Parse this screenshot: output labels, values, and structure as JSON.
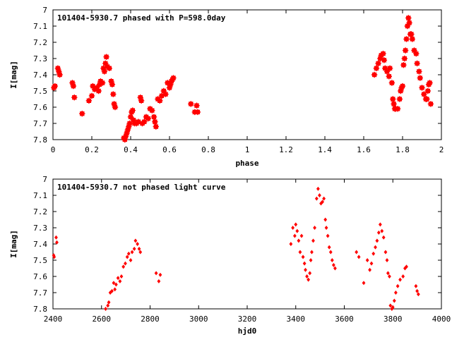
{
  "chart_data": [
    {
      "type": "scatter",
      "title": "101404-5930.7 phased with P=598.0day",
      "xlabel": "phase",
      "ylabel": "I[mag]",
      "xlim": [
        0,
        2
      ],
      "ylim": [
        7,
        7.8
      ],
      "y_inverted": true,
      "grid": false,
      "x_ticks": [
        0,
        0.2,
        0.4,
        0.6,
        0.8,
        1,
        1.2,
        1.4,
        1.6,
        1.8,
        2
      ],
      "x_tick_labels": [
        "0",
        "0.2",
        "0.4",
        "0.6",
        "0.8",
        "1",
        "1.2",
        "1.4",
        "1.6",
        "1.8",
        "2"
      ],
      "y_ticks": [
        7,
        7.1,
        7.2,
        7.3,
        7.4,
        7.5,
        7.6,
        7.7,
        7.8
      ],
      "y_tick_labels": [
        "7",
        "7.1",
        "7.2",
        "7.3",
        "7.4",
        "7.5",
        "7.6",
        "7.7",
        "7.8"
      ],
      "marker": "star",
      "color": "#ff0000",
      "series": [
        {
          "x": [
            0.005,
            0.01,
            0.025,
            0.03,
            0.035,
            0.1,
            0.105,
            0.11,
            0.15,
            0.185,
            0.2,
            0.205,
            0.215,
            0.225,
            0.235,
            0.24,
            0.245,
            0.255,
            0.26,
            0.265,
            0.27,
            0.275,
            0.28,
            0.29,
            0.3,
            0.305,
            0.31,
            0.315,
            0.32,
            0.365,
            0.37,
            0.375,
            0.38,
            0.385,
            0.39,
            0.395,
            0.4,
            0.405,
            0.41,
            0.415,
            0.42,
            0.43,
            0.44,
            0.45,
            0.455,
            0.46,
            0.47,
            0.48,
            0.49,
            0.5,
            0.51,
            0.52,
            0.525,
            0.53,
            0.54,
            0.55,
            0.56,
            0.57,
            0.58,
            0.59,
            0.6,
            0.605,
            0.61,
            0.615,
            0.62,
            0.71,
            0.73,
            0.74,
            0.745,
            1.655,
            1.665,
            1.675,
            1.685,
            1.69,
            1.7,
            1.705,
            1.71,
            1.72,
            1.73,
            1.735,
            1.745,
            1.75,
            1.755,
            1.76,
            1.765,
            1.775,
            1.785,
            1.79,
            1.795,
            1.8,
            1.805,
            1.81,
            1.815,
            1.82,
            1.825,
            1.83,
            1.835,
            1.84,
            1.845,
            1.85,
            1.86,
            1.87,
            1.875,
            1.885,
            1.89,
            1.9,
            1.91,
            1.92,
            1.925,
            1.93,
            1.935,
            1.94,
            1.945
          ],
          "y": [
            7.48,
            7.47,
            7.36,
            7.38,
            7.4,
            7.45,
            7.47,
            7.54,
            7.64,
            7.56,
            7.53,
            7.47,
            7.49,
            7.48,
            7.5,
            7.46,
            7.44,
            7.45,
            7.36,
            7.38,
            7.33,
            7.29,
            7.35,
            7.36,
            7.44,
            7.46,
            7.52,
            7.58,
            7.6,
            7.79,
            7.8,
            7.78,
            7.76,
            7.74,
            7.72,
            7.7,
            7.66,
            7.63,
            7.62,
            7.68,
            7.7,
            7.7,
            7.69,
            7.54,
            7.56,
            7.7,
            7.69,
            7.66,
            7.67,
            7.61,
            7.62,
            7.66,
            7.69,
            7.72,
            7.55,
            7.56,
            7.53,
            7.5,
            7.52,
            7.45,
            7.48,
            7.46,
            7.44,
            7.43,
            7.42,
            7.58,
            7.63,
            7.59,
            7.63,
            7.4,
            7.36,
            7.33,
            7.3,
            7.28,
            7.27,
            7.31,
            7.36,
            7.38,
            7.41,
            7.36,
            7.45,
            7.55,
            7.58,
            7.61,
            7.61,
            7.61,
            7.55,
            7.5,
            7.48,
            7.47,
            7.34,
            7.3,
            7.25,
            7.18,
            7.1,
            7.05,
            7.08,
            7.15,
            7.15,
            7.18,
            7.25,
            7.27,
            7.33,
            7.38,
            7.42,
            7.48,
            7.52,
            7.55,
            7.55,
            7.5,
            7.46,
            7.45,
            7.58
          ]
        }
      ]
    },
    {
      "type": "scatter",
      "title": "101404-5930.7 not phased light curve",
      "xlabel": "hjd0",
      "ylabel": "I[mag]",
      "xlim": [
        2400,
        4000
      ],
      "ylim": [
        7,
        7.8
      ],
      "y_inverted": true,
      "grid": false,
      "x_ticks": [
        2400,
        2600,
        2800,
        3000,
        3200,
        3400,
        3600,
        3800,
        4000
      ],
      "x_tick_labels": [
        "2400",
        "2600",
        "2800",
        "3000",
        "3200",
        "3400",
        "3600",
        "3800",
        "4000"
      ],
      "y_ticks": [
        7,
        7.1,
        7.2,
        7.3,
        7.4,
        7.5,
        7.6,
        7.7,
        7.8
      ],
      "y_tick_labels": [
        "7",
        "7.1",
        "7.2",
        "7.3",
        "7.4",
        "7.5",
        "7.6",
        "7.7",
        "7.8"
      ],
      "marker": "diamond",
      "color": "#ff0000",
      "series": [
        {
          "x": [
            2403,
            2405,
            2413,
            2416,
            2617,
            2626,
            2630,
            2636,
            2643,
            2650,
            2655,
            2660,
            2668,
            2676,
            2682,
            2690,
            2698,
            2706,
            2712,
            2720,
            2726,
            2735,
            2740,
            2748,
            2755,
            2760,
            2825,
            2836,
            2842,
            3380,
            3388,
            3396,
            3400,
            3406,
            3412,
            3418,
            3424,
            3430,
            3436,
            3440,
            3446,
            3452,
            3458,
            3462,
            3466,
            3472,
            3478,
            3486,
            3492,
            3498,
            3504,
            3510,
            3516,
            3522,
            3526,
            3532,
            3538,
            3544,
            3550,
            3556,
            3562,
            3650,
            3660,
            3680,
            3695,
            3705,
            3712,
            3720,
            3728,
            3735,
            3742,
            3748,
            3755,
            3762,
            3770,
            3776,
            3780,
            3786,
            3790,
            3796,
            3800,
            3806,
            3812,
            3820,
            3830,
            3842,
            3850,
            3856,
            3895,
            3900,
            3905
          ],
          "y": [
            7.47,
            7.48,
            7.36,
            7.39,
            7.8,
            7.78,
            7.76,
            7.7,
            7.69,
            7.64,
            7.68,
            7.65,
            7.61,
            7.63,
            7.6,
            7.54,
            7.52,
            7.48,
            7.46,
            7.5,
            7.45,
            7.43,
            7.38,
            7.4,
            7.43,
            7.45,
            7.58,
            7.63,
            7.59,
            7.4,
            7.3,
            7.35,
            7.28,
            7.32,
            7.38,
            7.45,
            7.35,
            7.48,
            7.52,
            7.56,
            7.6,
            7.62,
            7.58,
            7.5,
            7.45,
            7.38,
            7.3,
            7.12,
            7.06,
            7.1,
            7.15,
            7.14,
            7.12,
            7.25,
            7.3,
            7.35,
            7.42,
            7.45,
            7.5,
            7.53,
            7.55,
            7.45,
            7.48,
            7.64,
            7.5,
            7.56,
            7.52,
            7.46,
            7.42,
            7.38,
            7.33,
            7.28,
            7.32,
            7.36,
            7.45,
            7.5,
            7.58,
            7.6,
            7.78,
            7.8,
            7.79,
            7.75,
            7.7,
            7.66,
            7.62,
            7.6,
            7.55,
            7.54,
            7.66,
            7.69,
            7.71
          ]
        }
      ]
    }
  ]
}
